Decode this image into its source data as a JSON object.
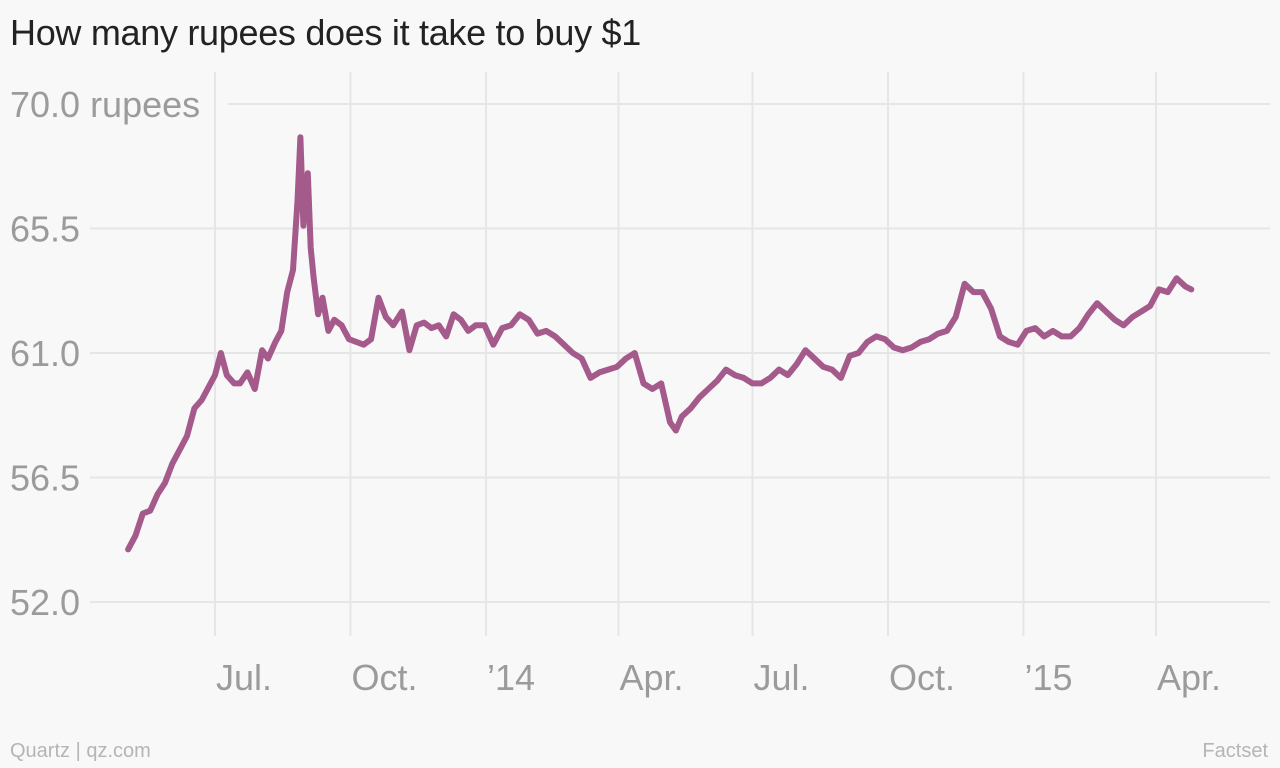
{
  "chart_data": {
    "type": "line",
    "title": "How many rupees does it take to buy $1",
    "xlabel": "",
    "ylabel": "",
    "y_unit": "rupees",
    "ylim": [
      52.0,
      70.0
    ],
    "yticks": [
      52.0,
      56.5,
      61.0,
      65.5,
      70.0
    ],
    "ytick_labels": [
      "52.0",
      "56.5",
      "61.0",
      "65.5",
      "70.0 rupees"
    ],
    "xticks": [
      "2013-07-01",
      "2013-10-01",
      "2014-01-01",
      "2014-04-01",
      "2014-07-01",
      "2014-10-01",
      "2015-01-01",
      "2015-04-01"
    ],
    "xtick_labels": [
      "Jul.",
      "Oct.",
      "’14",
      "Apr.",
      "Jul.",
      "Oct.",
      "’15",
      "Apr."
    ],
    "xlim": [
      "2013-04-01",
      "2015-05-15"
    ],
    "grid": true,
    "line_color": "#a55a8c",
    "series": [
      {
        "x": [
          "2013-05-03",
          "2013-05-08",
          "2013-05-13",
          "2013-05-18",
          "2013-05-23",
          "2013-05-28",
          "2013-06-02",
          "2013-06-07",
          "2013-06-12",
          "2013-06-17",
          "2013-06-22",
          "2013-06-27",
          "2013-07-01",
          "2013-07-05",
          "2013-07-09",
          "2013-07-14",
          "2013-07-18",
          "2013-07-23",
          "2013-07-28",
          "2013-08-02",
          "2013-08-06",
          "2013-08-11",
          "2013-08-15",
          "2013-08-19",
          "2013-08-23",
          "2013-08-26",
          "2013-08-28",
          "2013-08-30",
          "2013-09-02",
          "2013-09-04",
          "2013-09-06",
          "2013-09-09",
          "2013-09-12",
          "2013-09-16",
          "2013-09-20",
          "2013-09-25",
          "2013-09-30",
          "2013-10-05",
          "2013-10-10",
          "2013-10-15",
          "2013-10-20",
          "2013-10-25",
          "2013-10-30",
          "2013-11-05",
          "2013-11-10",
          "2013-11-15",
          "2013-11-20",
          "2013-11-25",
          "2013-11-30",
          "2013-12-05",
          "2013-12-10",
          "2013-12-15",
          "2013-12-20",
          "2013-12-25",
          "2013-12-31",
          "2014-01-06",
          "2014-01-12",
          "2014-01-18",
          "2014-01-24",
          "2014-01-30",
          "2014-02-05",
          "2014-02-11",
          "2014-02-17",
          "2014-02-23",
          "2014-03-01",
          "2014-03-07",
          "2014-03-13",
          "2014-03-19",
          "2014-03-25",
          "2014-03-31",
          "2014-04-06",
          "2014-04-12",
          "2014-04-18",
          "2014-04-24",
          "2014-04-30",
          "2014-05-06",
          "2014-05-10",
          "2014-05-14",
          "2014-05-20",
          "2014-05-26",
          "2014-06-01",
          "2014-06-07",
          "2014-06-13",
          "2014-06-19",
          "2014-06-25",
          "2014-07-01",
          "2014-07-07",
          "2014-07-13",
          "2014-07-19",
          "2014-07-25",
          "2014-07-31",
          "2014-08-06",
          "2014-08-12",
          "2014-08-18",
          "2014-08-24",
          "2014-08-30",
          "2014-09-05",
          "2014-09-11",
          "2014-09-17",
          "2014-09-23",
          "2014-09-29",
          "2014-10-05",
          "2014-10-11",
          "2014-10-17",
          "2014-10-23",
          "2014-10-29",
          "2014-11-04",
          "2014-11-10",
          "2014-11-16",
          "2014-11-22",
          "2014-11-28",
          "2014-12-04",
          "2014-12-10",
          "2014-12-16",
          "2014-12-22",
          "2014-12-28",
          "2015-01-03",
          "2015-01-09",
          "2015-01-15",
          "2015-01-21",
          "2015-01-27",
          "2015-02-02",
          "2015-02-08",
          "2015-02-14",
          "2015-02-20",
          "2015-02-26",
          "2015-03-04",
          "2015-03-10",
          "2015-03-16",
          "2015-03-22",
          "2015-03-28",
          "2015-04-03",
          "2015-04-09",
          "2015-04-15",
          "2015-04-21",
          "2015-04-25"
        ],
        "values": [
          53.9,
          54.4,
          55.2,
          55.3,
          55.9,
          56.3,
          57.0,
          57.5,
          58.0,
          59.0,
          59.3,
          59.8,
          60.2,
          61.0,
          60.2,
          59.9,
          59.9,
          60.3,
          59.7,
          61.1,
          60.8,
          61.4,
          61.8,
          63.2,
          64.0,
          66.5,
          68.8,
          65.6,
          67.5,
          64.8,
          63.7,
          62.4,
          63.0,
          61.8,
          62.2,
          62.0,
          61.5,
          61.4,
          61.3,
          61.5,
          63.0,
          62.3,
          62.0,
          62.5,
          61.1,
          62.0,
          62.1,
          61.9,
          62.0,
          61.6,
          62.4,
          62.2,
          61.8,
          62.0,
          62.0,
          61.3,
          61.9,
          62.0,
          62.4,
          62.2,
          61.7,
          61.8,
          61.6,
          61.3,
          61.0,
          60.8,
          60.1,
          60.3,
          60.4,
          60.5,
          60.8,
          61.0,
          59.9,
          59.7,
          59.9,
          58.5,
          58.2,
          58.7,
          59.0,
          59.4,
          59.7,
          60.0,
          60.4,
          60.2,
          60.1,
          59.9,
          59.9,
          60.1,
          60.4,
          60.2,
          60.6,
          61.1,
          60.8,
          60.5,
          60.4,
          60.1,
          60.9,
          61.0,
          61.4,
          61.6,
          61.5,
          61.2,
          61.1,
          61.2,
          61.4,
          61.5,
          61.7,
          61.8,
          62.3,
          63.5,
          63.2,
          63.2,
          62.6,
          61.6,
          61.4,
          61.3,
          61.8,
          61.9,
          61.6,
          61.8,
          61.6,
          61.6,
          61.9,
          62.4,
          62.8,
          62.5,
          62.2,
          62.0,
          62.3,
          62.5,
          62.7,
          63.3,
          63.2,
          63.7,
          63.4,
          63.3
        ]
      }
    ],
    "source_left": "Quartz | qz.com",
    "source_right": "Factset"
  }
}
